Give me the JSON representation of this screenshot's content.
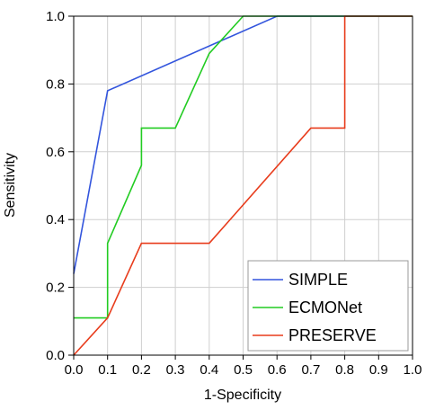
{
  "chart_data": {
    "type": "line",
    "title": "",
    "xlabel": "1-Specificity",
    "ylabel": "Sensitivity",
    "xlim": [
      0.0,
      1.0
    ],
    "ylim": [
      0.0,
      1.0
    ],
    "x_ticks": [
      "0.0",
      "0.1",
      "0.2",
      "0.3",
      "0.4",
      "0.5",
      "0.6",
      "0.7",
      "0.8",
      "0.9",
      "1.0"
    ],
    "y_ticks": [
      "0.0",
      "0.2",
      "0.4",
      "0.6",
      "0.8",
      "1.0"
    ],
    "grid": true,
    "legend_position": "bottom-right",
    "series": [
      {
        "name": "SIMPLE",
        "color": "#3355dd",
        "points": [
          [
            0.0,
            0.24
          ],
          [
            0.1,
            0.78
          ],
          [
            0.6,
            1.0
          ],
          [
            1.0,
            1.0
          ]
        ]
      },
      {
        "name": "ECMONet",
        "color": "#22cc22",
        "points": [
          [
            0.0,
            0.11
          ],
          [
            0.1,
            0.11
          ],
          [
            0.1,
            0.33
          ],
          [
            0.2,
            0.56
          ],
          [
            0.2,
            0.67
          ],
          [
            0.3,
            0.67
          ],
          [
            0.4,
            0.89
          ],
          [
            0.5,
            1.0
          ],
          [
            1.0,
            1.0
          ]
        ]
      },
      {
        "name": "PRESERVE",
        "color": "#e83c1c",
        "points": [
          [
            0.0,
            0.0
          ],
          [
            0.1,
            0.11
          ],
          [
            0.2,
            0.33
          ],
          [
            0.4,
            0.33
          ],
          [
            0.7,
            0.67
          ],
          [
            0.8,
            0.67
          ],
          [
            0.8,
            1.0
          ],
          [
            1.0,
            1.0
          ]
        ]
      }
    ]
  }
}
